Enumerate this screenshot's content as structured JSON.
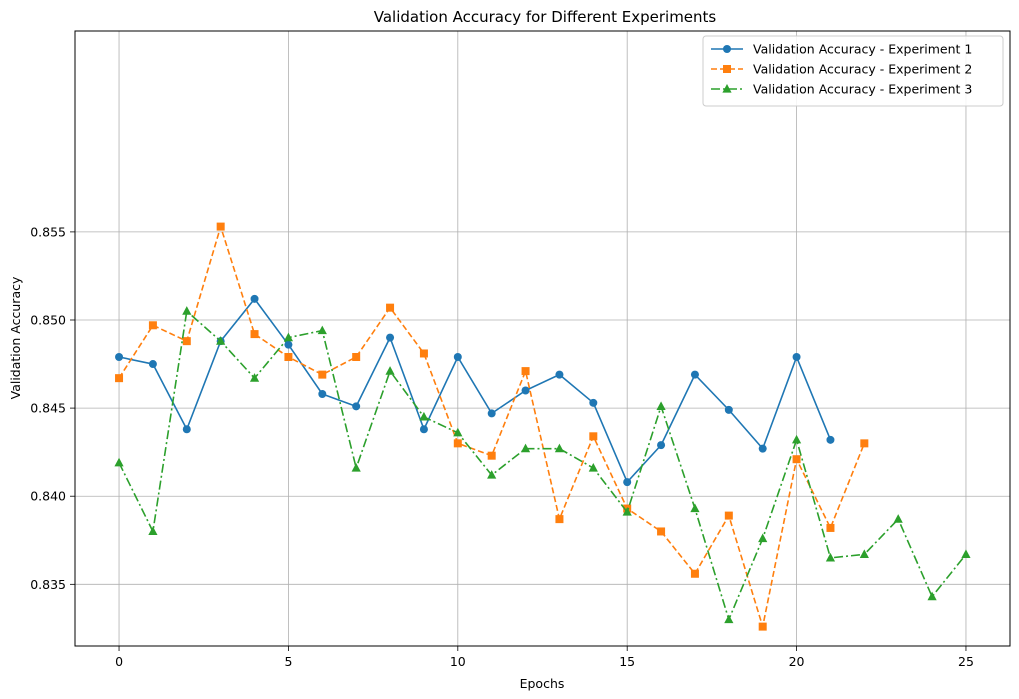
{
  "chart_data": {
    "type": "line",
    "title": "Validation Accuracy for Different Experiments",
    "xlabel": "Epochs",
    "ylabel": "Validation Accuracy",
    "xlim": [
      -1.3,
      26.3
    ],
    "ylim": [
      0.8315,
      0.8664
    ],
    "xticks": [
      0,
      5,
      10,
      15,
      20,
      25
    ],
    "yticks": [
      0.835,
      0.84,
      0.845,
      0.85,
      0.855
    ],
    "grid": true,
    "legend_position": "top-right",
    "series": [
      {
        "name": "Validation Accuracy - Experiment 1",
        "color": "#1f77b4",
        "line_style": "solid",
        "marker": "circle",
        "x": [
          0,
          1,
          2,
          3,
          4,
          5,
          6,
          7,
          8,
          9,
          10,
          11,
          12,
          13,
          14,
          15,
          16,
          17,
          18,
          19,
          20,
          21
        ],
        "y": [
          0.8479,
          0.8475,
          0.8438,
          0.8488,
          0.8512,
          0.8486,
          0.8458,
          0.8451,
          0.849,
          0.8438,
          0.8479,
          0.8447,
          0.846,
          0.8469,
          0.8453,
          0.8408,
          0.8429,
          0.8469,
          0.8449,
          0.8427,
          0.8479,
          0.8432
        ]
      },
      {
        "name": "Validation Accuracy - Experiment 2",
        "color": "#ff7f0e",
        "line_style": "dashed",
        "marker": "square",
        "x": [
          0,
          1,
          2,
          3,
          4,
          5,
          6,
          7,
          8,
          9,
          10,
          11,
          12,
          13,
          14,
          15,
          16,
          17,
          18,
          19,
          20,
          21,
          22
        ],
        "y": [
          0.8467,
          0.8497,
          0.8488,
          0.8553,
          0.8492,
          0.8479,
          0.8469,
          0.8479,
          0.8507,
          0.8481,
          0.843,
          0.8423,
          0.8471,
          0.8387,
          0.8434,
          0.8393,
          0.838,
          0.8356,
          0.8389,
          0.8326,
          0.8421,
          0.8382,
          0.843
        ]
      },
      {
        "name": "Validation Accuracy - Experiment 3",
        "color": "#2ca02c",
        "line_style": "dashdot",
        "marker": "triangle",
        "x": [
          0,
          1,
          2,
          3,
          4,
          5,
          6,
          7,
          8,
          9,
          10,
          11,
          12,
          13,
          14,
          15,
          16,
          17,
          18,
          19,
          20,
          21,
          22,
          23,
          24,
          25
        ],
        "y": [
          0.8419,
          0.838,
          0.8505,
          0.8488,
          0.8467,
          0.849,
          0.8494,
          0.8416,
          0.8471,
          0.8445,
          0.8436,
          0.8412,
          0.8427,
          0.8427,
          0.8416,
          0.8391,
          0.8451,
          0.8393,
          0.833,
          0.8376,
          0.8432,
          0.8365,
          0.8367,
          0.8387,
          0.8343,
          0.8367
        ]
      }
    ]
  }
}
